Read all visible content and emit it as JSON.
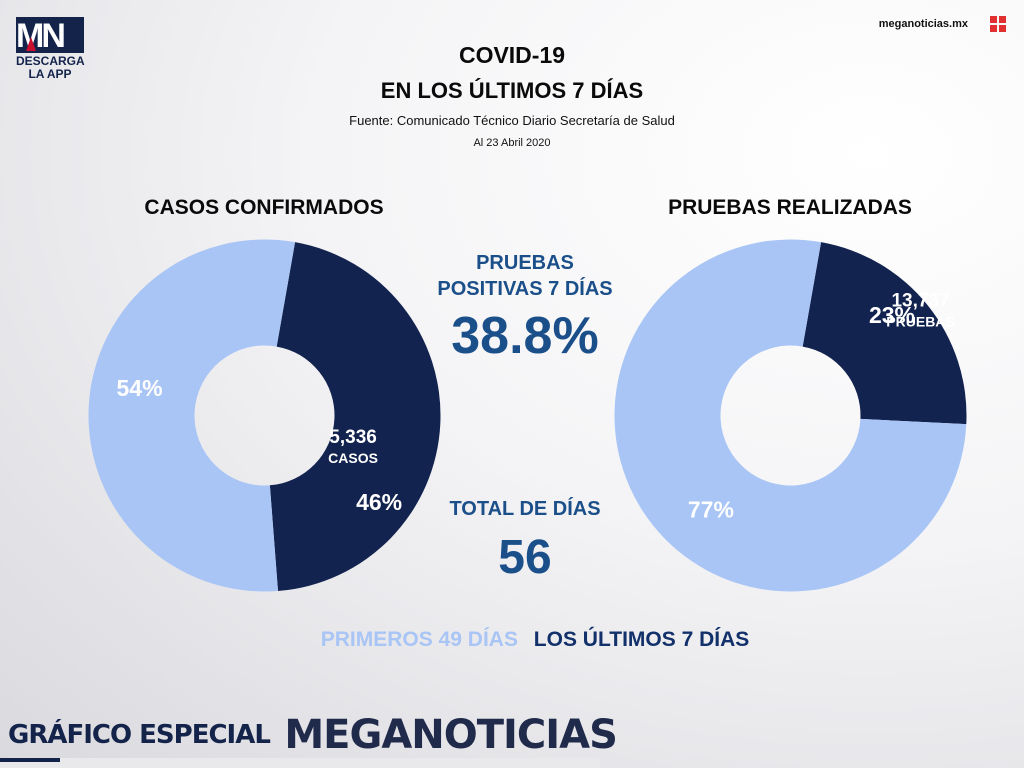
{
  "brand": {
    "logo_text": "MN",
    "app_line1": "DESCARGA",
    "app_line2": "LA APP",
    "website": "meganoticias.mx",
    "footer_label": "GRÁFICO ESPECIAL",
    "footer_brand": "MEGANOTICIAS"
  },
  "header": {
    "title_line1": "COVID-19",
    "title_line2": "EN LOS ÚLTIMOS 7 DÍAS",
    "source": "Fuente: Comunicado Técnico Diario Secretaría de Salud",
    "date": "Al 23 Abril 2020"
  },
  "stats": {
    "positive_label_line1": "PRUEBAS",
    "positive_label_line2": "POSITIVAS 7 DÍAS",
    "positive_value": "38.8%",
    "total_days_label": "TOTAL DE DÍAS",
    "total_days_value": "56"
  },
  "legend": {
    "first": "PRIMEROS 49 DÍAS",
    "last": "LOS ÚLTIMOS 7 DÍAS"
  },
  "colors": {
    "first_49_days": "#a9c5f5",
    "last_7_days": "#12234f",
    "highlight_text": "#1b4f8a"
  },
  "chart_data": [
    {
      "type": "pie",
      "title": "CASOS CONFIRMADOS",
      "slices": [
        {
          "name": "LOS ÚLTIMOS 7 DÍAS",
          "percent": 46,
          "label": "46%",
          "count": "5,336",
          "unit": "CASOS",
          "color": "#12234f"
        },
        {
          "name": "PRIMEROS 49 DÍAS",
          "percent": 54,
          "label": "54%",
          "color": "#a9c5f5"
        }
      ]
    },
    {
      "type": "pie",
      "title": "PRUEBAS REALIZADAS",
      "slices": [
        {
          "name": "LOS ÚLTIMOS 7 DÍAS",
          "percent": 23,
          "label": "23%",
          "count": "13,737",
          "unit": "PRUEBAS",
          "color": "#12234f"
        },
        {
          "name": "PRIMEROS 49 DÍAS",
          "percent": 77,
          "label": "77%",
          "color": "#a9c5f5"
        }
      ]
    }
  ]
}
